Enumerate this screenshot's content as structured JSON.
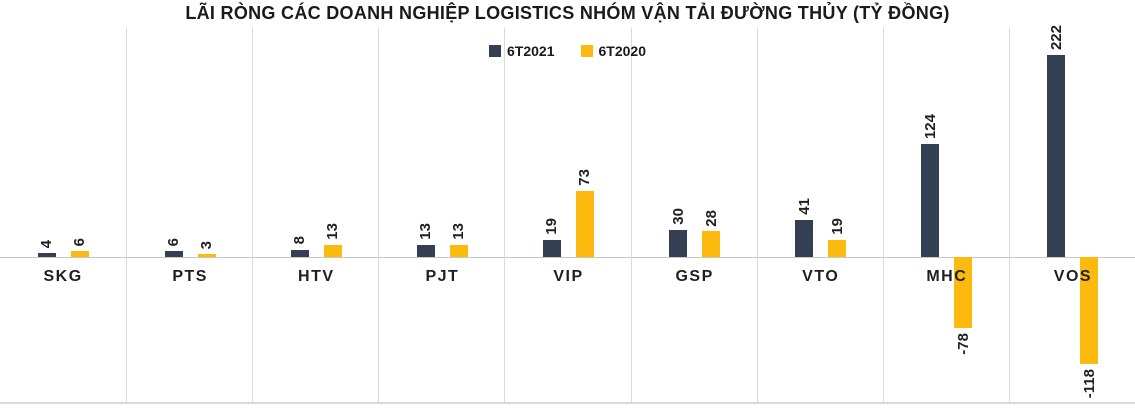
{
  "chart_data": {
    "type": "bar",
    "title": "LÃI RÒNG CÁC DOANH NGHIỆP LOGISTICS NHÓM VẬN TẢI ĐƯỜNG THỦY (TỶ ĐỒNG)",
    "categories": [
      "SKG",
      "PTS",
      "HTV",
      "PJT",
      "VIP",
      "GSP",
      "VTO",
      "MHC",
      "VOS"
    ],
    "series": [
      {
        "name": "6T2021",
        "color": "#333F52",
        "values": [
          4,
          6,
          8,
          13,
          19,
          30,
          41,
          124,
          222
        ]
      },
      {
        "name": "6T2020",
        "color": "#FBBA0D",
        "values": [
          6,
          3,
          13,
          13,
          73,
          28,
          19,
          -78,
          -118
        ]
      }
    ],
    "ylim": [
      -160,
      252
    ],
    "baseline_value": 0,
    "grid": "vertical light-gray separators between categories",
    "legend_position": "top-center",
    "value_labels": "rotated 90 degrees, bold, at bar ends"
  },
  "colors": {
    "series_6t2021": "#333F52",
    "series_6t2020": "#FBBA0D",
    "gridline": "#D9D9D9",
    "axis_line": "#C6C6C6",
    "text": "#1A1A1A",
    "background": "#FFFFFF"
  }
}
